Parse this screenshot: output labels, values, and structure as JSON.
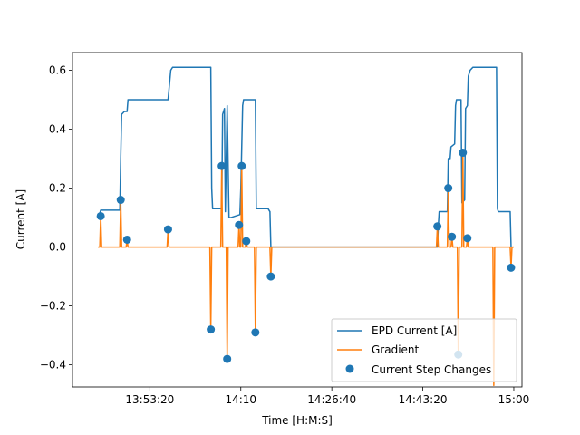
{
  "chart_data": {
    "type": "line",
    "title": "",
    "xlabel": "Time [H:M:S]",
    "ylabel": "Current [A]",
    "x_unit": "time of day (H:M:S)",
    "xlim": [
      "13:39:10",
      "15:01:30"
    ],
    "ylim": [
      -0.475,
      0.66
    ],
    "xticks": [
      {
        "value": "13:53:20",
        "label": "13:53:20"
      },
      {
        "value": "14:10:00",
        "label": "14:10"
      },
      {
        "value": "14:26:40",
        "label": "14:26:40"
      },
      {
        "value": "14:43:20",
        "label": "14:43:20"
      },
      {
        "value": "15:00:00",
        "label": "15:00"
      }
    ],
    "yticks": [
      -0.4,
      -0.2,
      0.0,
      0.2,
      0.4,
      0.6
    ],
    "ytick_labels": [
      "−0.4",
      "−0.2",
      "0.0",
      "0.2",
      "0.4",
      "0.6"
    ],
    "grid": false,
    "legend": "lower-right",
    "colors": {
      "current": "#1f77b4",
      "gradient": "#ff7f0e",
      "steps": "#1f77b4"
    },
    "series": [
      {
        "name": "EPD Current [A]",
        "kind": "line",
        "color": "#1f77b4",
        "points": [
          [
            "13:44:00",
            0.105
          ],
          [
            "13:44:20",
            0.125
          ],
          [
            "13:47:50",
            0.125
          ],
          [
            "13:48:00",
            0.3
          ],
          [
            "13:48:10",
            0.45
          ],
          [
            "13:48:40",
            0.46
          ],
          [
            "13:49:10",
            0.46
          ],
          [
            "13:49:20",
            0.5
          ],
          [
            "13:50:00",
            0.5
          ],
          [
            "13:56:40",
            0.5
          ],
          [
            "13:57:10",
            0.6
          ],
          [
            "13:57:30",
            0.61
          ],
          [
            "14:04:30",
            0.61
          ],
          [
            "14:04:40",
            0.2
          ],
          [
            "14:04:50",
            0.13
          ],
          [
            "14:06:30",
            0.13
          ],
          [
            "14:06:40",
            0.45
          ],
          [
            "14:07:00",
            0.47
          ],
          [
            "14:07:10",
            0.12
          ],
          [
            "14:07:30",
            0.48
          ],
          [
            "14:07:50",
            0.1
          ],
          [
            "14:08:10",
            0.1
          ],
          [
            "14:09:50",
            0.11
          ],
          [
            "14:10:00",
            0.2
          ],
          [
            "14:10:20",
            0.48
          ],
          [
            "14:10:30",
            0.5
          ],
          [
            "14:12:40",
            0.5
          ],
          [
            "14:12:50",
            0.13
          ],
          [
            "14:15:00",
            0.13
          ],
          [
            "14:15:20",
            0.12
          ],
          [
            "14:15:30",
            0.0
          ],
          [
            "14:46:00",
            0.0
          ],
          [
            "14:46:10",
            0.07
          ],
          [
            "14:46:20",
            0.12
          ],
          [
            "14:47:50",
            0.12
          ],
          [
            "14:48:00",
            0.3
          ],
          [
            "14:48:20",
            0.3
          ],
          [
            "14:48:30",
            0.34
          ],
          [
            "14:49:10",
            0.35
          ],
          [
            "14:49:20",
            0.48
          ],
          [
            "14:49:30",
            0.5
          ],
          [
            "14:50:20",
            0.5
          ],
          [
            "14:50:30",
            0.15
          ],
          [
            "14:51:00",
            0.16
          ],
          [
            "14:51:10",
            0.47
          ],
          [
            "14:51:30",
            0.48
          ],
          [
            "14:51:40",
            0.58
          ],
          [
            "14:52:00",
            0.6
          ],
          [
            "14:52:30",
            0.61
          ],
          [
            "14:56:50",
            0.61
          ],
          [
            "14:57:00",
            0.13
          ],
          [
            "14:57:10",
            0.12
          ],
          [
            "14:59:20",
            0.12
          ],
          [
            "14:59:30",
            0.0
          ]
        ]
      },
      {
        "name": "Gradient",
        "kind": "line",
        "color": "#ff7f0e",
        "points": [
          [
            "13:43:50",
            0.0
          ],
          [
            "13:44:10",
            0.0
          ],
          [
            "13:44:20",
            0.105
          ],
          [
            "13:44:30",
            0.0
          ],
          [
            "13:47:50",
            0.0
          ],
          [
            "13:48:00",
            0.16
          ],
          [
            "13:48:10",
            0.0
          ],
          [
            "13:49:00",
            0.0
          ],
          [
            "13:49:10",
            0.025
          ],
          [
            "13:49:20",
            0.0
          ],
          [
            "13:56:30",
            0.0
          ],
          [
            "13:56:40",
            0.06
          ],
          [
            "13:56:50",
            0.0
          ],
          [
            "14:04:20",
            0.0
          ],
          [
            "14:04:30",
            -0.28
          ],
          [
            "14:04:40",
            0.0
          ],
          [
            "14:06:20",
            0.0
          ],
          [
            "14:06:30",
            0.275
          ],
          [
            "14:06:40",
            0.0
          ],
          [
            "14:07:20",
            0.0
          ],
          [
            "14:07:30",
            -0.38
          ],
          [
            "14:07:40",
            0.0
          ],
          [
            "14:09:30",
            0.0
          ],
          [
            "14:09:40",
            0.075
          ],
          [
            "14:09:50",
            0.0
          ],
          [
            "14:10:00",
            0.0
          ],
          [
            "14:10:10",
            0.275
          ],
          [
            "14:10:20",
            0.0
          ],
          [
            "14:10:50",
            0.0
          ],
          [
            "14:11:00",
            0.02
          ],
          [
            "14:11:10",
            0.0
          ],
          [
            "14:12:30",
            0.0
          ],
          [
            "14:12:40",
            -0.29
          ],
          [
            "14:12:50",
            0.0
          ],
          [
            "14:15:20",
            0.0
          ],
          [
            "14:15:30",
            -0.1
          ],
          [
            "14:15:40",
            0.0
          ],
          [
            "14:45:50",
            0.0
          ],
          [
            "14:46:00",
            0.07
          ],
          [
            "14:46:10",
            0.0
          ],
          [
            "14:47:50",
            0.0
          ],
          [
            "14:48:00",
            0.2
          ],
          [
            "14:48:10",
            0.0
          ],
          [
            "14:48:30",
            0.0
          ],
          [
            "14:48:40",
            0.035
          ],
          [
            "14:48:50",
            0.0
          ],
          [
            "14:49:40",
            0.0
          ],
          [
            "14:49:50",
            -0.365
          ],
          [
            "14:50:00",
            0.0
          ],
          [
            "14:50:30",
            0.0
          ],
          [
            "14:50:40",
            0.32
          ],
          [
            "14:50:50",
            0.0
          ],
          [
            "14:51:20",
            0.0
          ],
          [
            "14:51:30",
            0.03
          ],
          [
            "14:51:40",
            0.0
          ],
          [
            "14:56:10",
            0.0
          ],
          [
            "14:56:20",
            -0.47
          ],
          [
            "14:56:30",
            0.0
          ],
          [
            "14:59:20",
            0.0
          ],
          [
            "14:59:30",
            -0.07
          ],
          [
            "14:59:40",
            0.0
          ],
          [
            "15:00:00",
            0.0
          ]
        ]
      },
      {
        "name": "Current Step Changes",
        "kind": "scatter",
        "color": "#1f77b4",
        "points": [
          [
            "13:44:20",
            0.105
          ],
          [
            "13:48:00",
            0.16
          ],
          [
            "13:49:10",
            0.025
          ],
          [
            "13:56:40",
            0.06
          ],
          [
            "14:04:30",
            -0.28
          ],
          [
            "14:06:30",
            0.275
          ],
          [
            "14:07:30",
            -0.38
          ],
          [
            "14:09:40",
            0.075
          ],
          [
            "14:10:10",
            0.275
          ],
          [
            "14:11:00",
            0.02
          ],
          [
            "14:12:40",
            -0.29
          ],
          [
            "14:15:30",
            -0.1
          ],
          [
            "14:46:00",
            0.07
          ],
          [
            "14:48:00",
            0.2
          ],
          [
            "14:48:40",
            0.035
          ],
          [
            "14:49:50",
            -0.365
          ],
          [
            "14:50:40",
            0.32
          ],
          [
            "14:51:30",
            0.03
          ],
          [
            "14:59:30",
            -0.07
          ]
        ]
      }
    ]
  }
}
